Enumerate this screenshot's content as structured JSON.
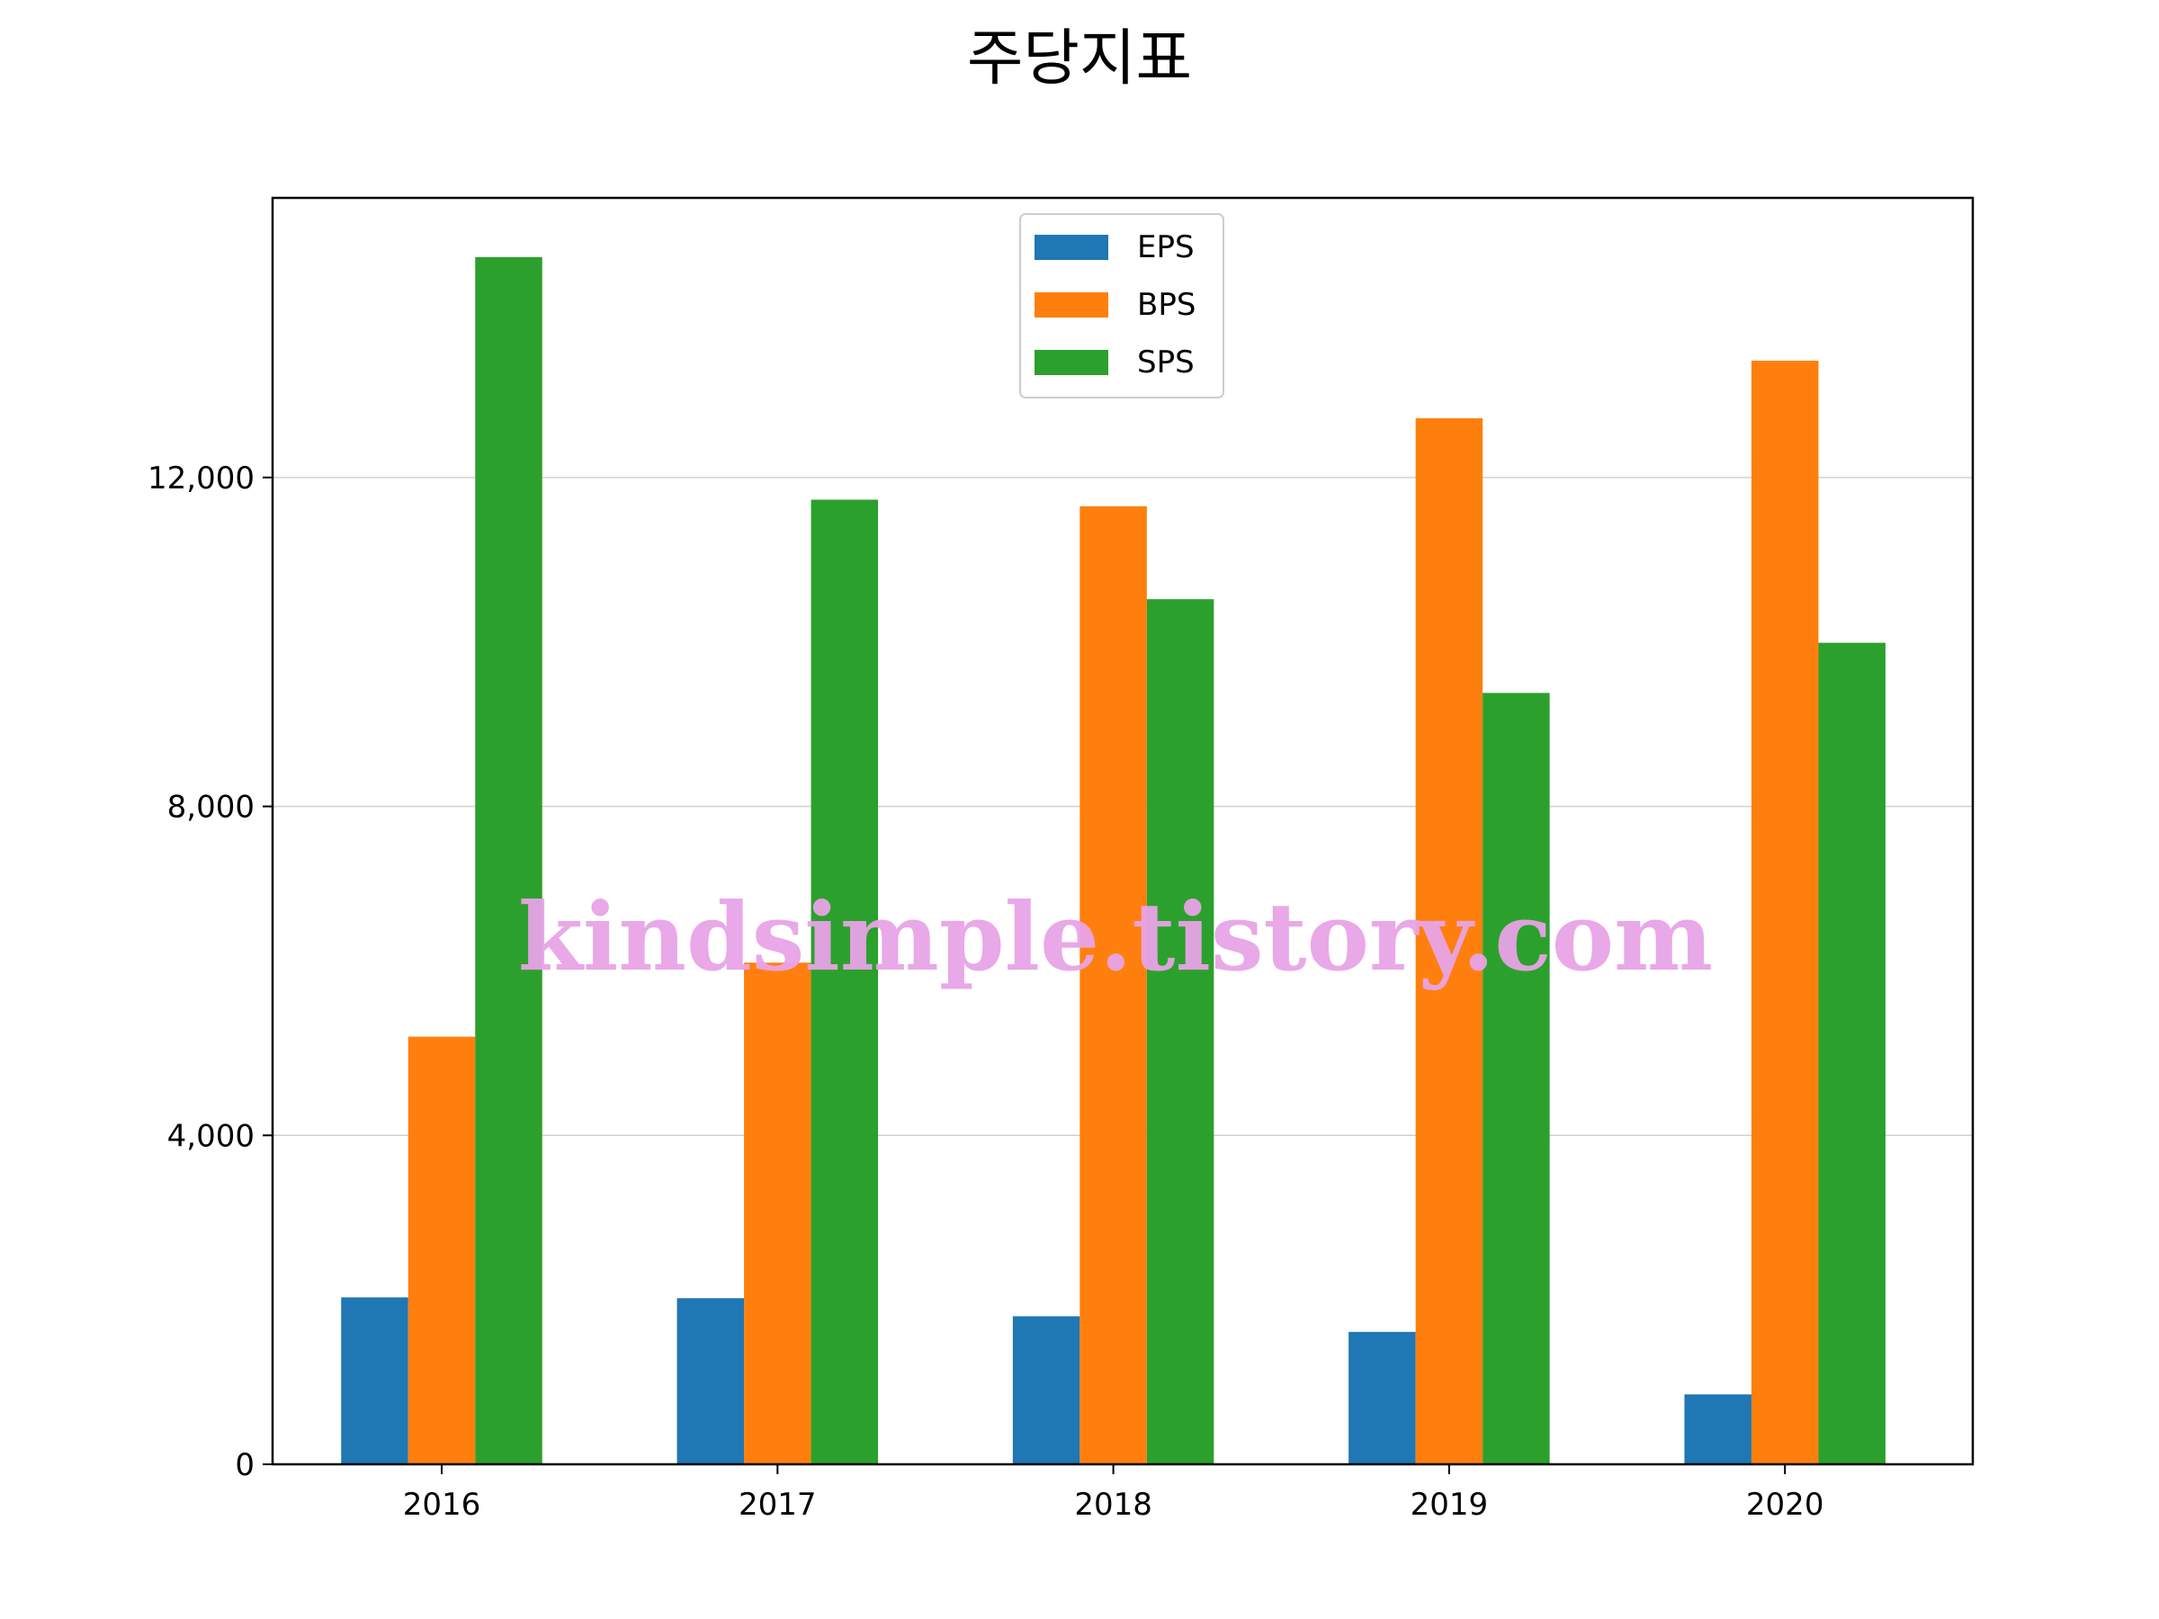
{
  "chart_data": {
    "type": "bar",
    "title": "주당지표",
    "xlabel": "",
    "ylabel": "",
    "categories": [
      "2016",
      "2017",
      "2018",
      "2019",
      "2020"
    ],
    "series": [
      {
        "name": "EPS",
        "color": "#1f77b4",
        "values": [
          2030,
          2020,
          1800,
          1610,
          850
        ]
      },
      {
        "name": "BPS",
        "color": "#ff7f0e",
        "values": [
          5200,
          6100,
          11650,
          12720,
          13420
        ]
      },
      {
        "name": "SPS",
        "color": "#2ca02c",
        "values": [
          14680,
          11730,
          10520,
          9380,
          9990
        ]
      }
    ],
    "ylim": [
      0,
      15400
    ],
    "yticks": [
      0,
      4000,
      8000,
      12000
    ],
    "ytick_labels": [
      "0",
      "4,000",
      "8,000",
      "12,000"
    ],
    "grid": "horizontal",
    "legend_position": "upper center"
  },
  "watermark": "kindsimple.tistory.com",
  "colors": {
    "gridline": "#d0d0d0",
    "axes": "#000000",
    "watermark": "#e8a4e6"
  }
}
